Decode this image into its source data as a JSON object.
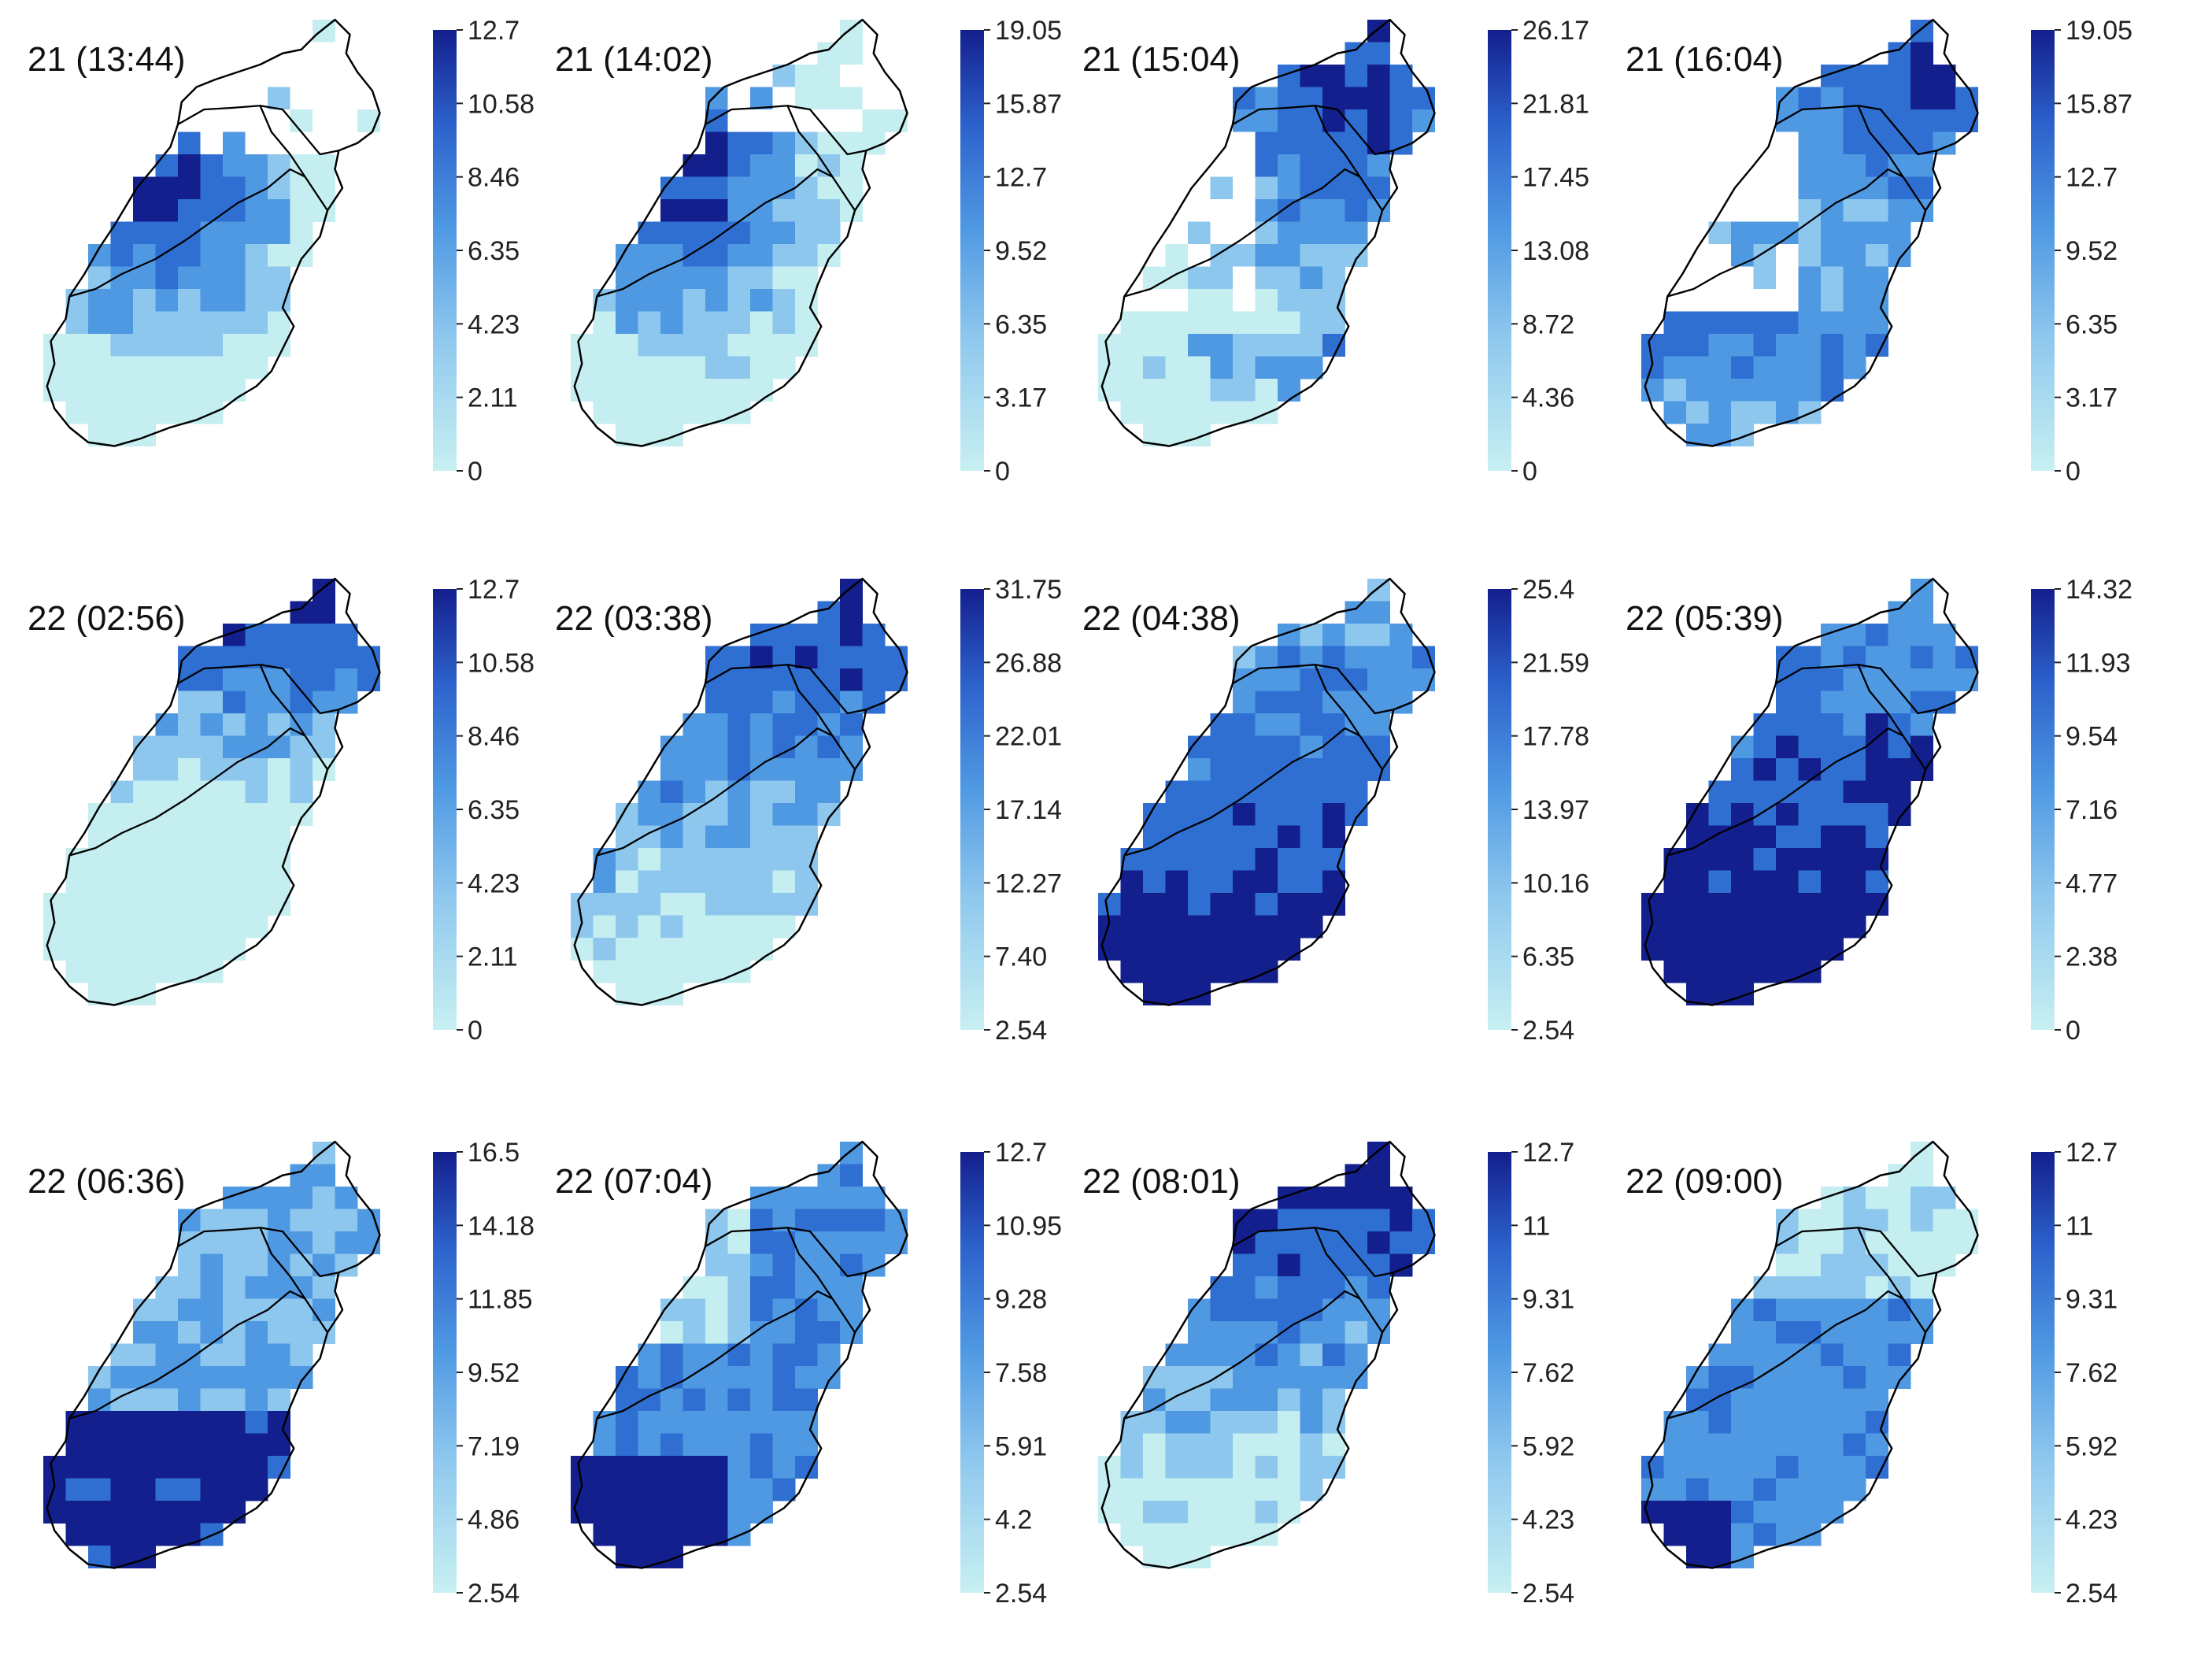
{
  "figure": {
    "rows": 3,
    "cols": 4,
    "colors": {
      "low": "#c4eef0",
      "mid1": "#8ec7ee",
      "mid2": "#4f99e3",
      "mid3": "#2f6fd2",
      "high": "#131f8d",
      "empty": "#ffffff",
      "outline": "#000000"
    }
  },
  "panels": [
    {
      "title": "21 (13:44)",
      "scale_ticks": [
        "12.7",
        "10.58",
        "8.46",
        "6.35",
        "4.23",
        "2.11",
        "0"
      ],
      "pattern": "center-west",
      "blank": "north"
    },
    {
      "title": "21 (14:02)",
      "scale_ticks": [
        "19.05",
        "15.87",
        "12.7",
        "9.52",
        "6.35",
        "3.17",
        "0"
      ],
      "pattern": "center-west",
      "blank": "north-east"
    },
    {
      "title": "21 (15:04)",
      "scale_ticks": [
        "26.17",
        "21.81",
        "17.45",
        "13.08",
        "8.72",
        "4.36",
        "0"
      ],
      "pattern": "north-east",
      "blank": "west"
    },
    {
      "title": "21 (16:04)",
      "scale_ticks": [
        "19.05",
        "15.87",
        "12.7",
        "9.52",
        "6.35",
        "3.17",
        "0"
      ],
      "pattern": "north-east-south",
      "blank": "west"
    },
    {
      "title": "22 (02:56)",
      "scale_ticks": [
        "12.7",
        "10.58",
        "8.46",
        "6.35",
        "4.23",
        "2.11",
        "0"
      ],
      "pattern": "north",
      "blank": "none"
    },
    {
      "title": "22 (03:38)",
      "scale_ticks": [
        "31.75",
        "26.88",
        "22.01",
        "17.14",
        "12.27",
        "7.40",
        "2.54"
      ],
      "pattern": "north-strong",
      "blank": "none"
    },
    {
      "title": "22 (04:38)",
      "scale_ticks": [
        "25.4",
        "21.59",
        "17.78",
        "13.97",
        "10.16",
        "6.35",
        "2.54"
      ],
      "pattern": "middle-south",
      "blank": "none"
    },
    {
      "title": "22 (05:39)",
      "scale_ticks": [
        "14.32",
        "11.93",
        "9.54",
        "7.16",
        "4.77",
        "2.38",
        "0"
      ],
      "pattern": "south-strong",
      "blank": "none"
    },
    {
      "title": "22 (06:36)",
      "scale_ticks": [
        "16.5",
        "14.18",
        "11.85",
        "9.52",
        "7.19",
        "4.86",
        "2.54"
      ],
      "pattern": "south",
      "blank": "none"
    },
    {
      "title": "22 (07:04)",
      "scale_ticks": [
        "12.7",
        "10.95",
        "9.28",
        "7.58",
        "5.91",
        "4.2",
        "2.54"
      ],
      "pattern": "south-west",
      "blank": "none"
    },
    {
      "title": "22 (08:01)",
      "scale_ticks": [
        "12.7",
        "11",
        "9.31",
        "7.62",
        "5.92",
        "4.23",
        "2.54"
      ],
      "pattern": "north-strong",
      "blank": "none"
    },
    {
      "title": "22 (09:00)",
      "scale_ticks": [
        "12.7",
        "11",
        "9.31",
        "7.62",
        "5.92",
        "4.23",
        "2.54"
      ],
      "pattern": "uniform",
      "blank": "none"
    }
  ]
}
